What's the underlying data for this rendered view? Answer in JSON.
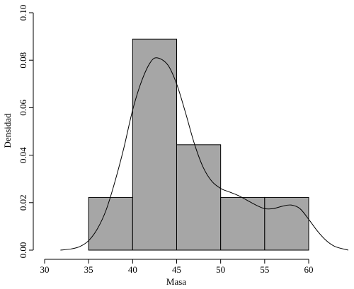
{
  "chart_data": {
    "type": "bar",
    "subtype": "histogram-with-density",
    "title": "",
    "xlabel": "Masa",
    "ylabel": "Densidad",
    "xlim": [
      30,
      65
    ],
    "ylim": [
      0,
      0.1
    ],
    "xticks": [
      30,
      35,
      40,
      45,
      50,
      55,
      60
    ],
    "xtick_labels": [
      "30",
      "35",
      "40",
      "45",
      "50",
      "55",
      "60"
    ],
    "yticks": [
      0.0,
      0.02,
      0.04,
      0.06,
      0.08,
      0.1
    ],
    "ytick_labels": [
      "0.00",
      "0.02",
      "0.04",
      "0.06",
      "0.08",
      "0.10"
    ],
    "grid": false,
    "bar_color": "#a6a6a6",
    "bins": [
      {
        "x0": 35,
        "x1": 40,
        "density": 0.0222
      },
      {
        "x0": 40,
        "x1": 45,
        "density": 0.0889
      },
      {
        "x0": 45,
        "x1": 50,
        "density": 0.0444
      },
      {
        "x0": 50,
        "x1": 55,
        "density": 0.0222
      },
      {
        "x0": 55,
        "x1": 60,
        "density": 0.0222
      }
    ],
    "density_curve": {
      "x": [
        31.8,
        33,
        34,
        35,
        36,
        37,
        38,
        39,
        40,
        41,
        42,
        42.8,
        44,
        45,
        46,
        47,
        48,
        49,
        50,
        51,
        52,
        53,
        54,
        55,
        56,
        57,
        58,
        59,
        60,
        61,
        62,
        63,
        64.5
      ],
      "y": [
        0.0,
        0.0005,
        0.0015,
        0.004,
        0.009,
        0.017,
        0.029,
        0.043,
        0.059,
        0.071,
        0.079,
        0.081,
        0.078,
        0.07,
        0.058,
        0.045,
        0.035,
        0.029,
        0.026,
        0.0245,
        0.023,
        0.021,
        0.019,
        0.0175,
        0.0175,
        0.0185,
        0.019,
        0.0175,
        0.013,
        0.008,
        0.004,
        0.0015,
        0.0
      ]
    }
  }
}
